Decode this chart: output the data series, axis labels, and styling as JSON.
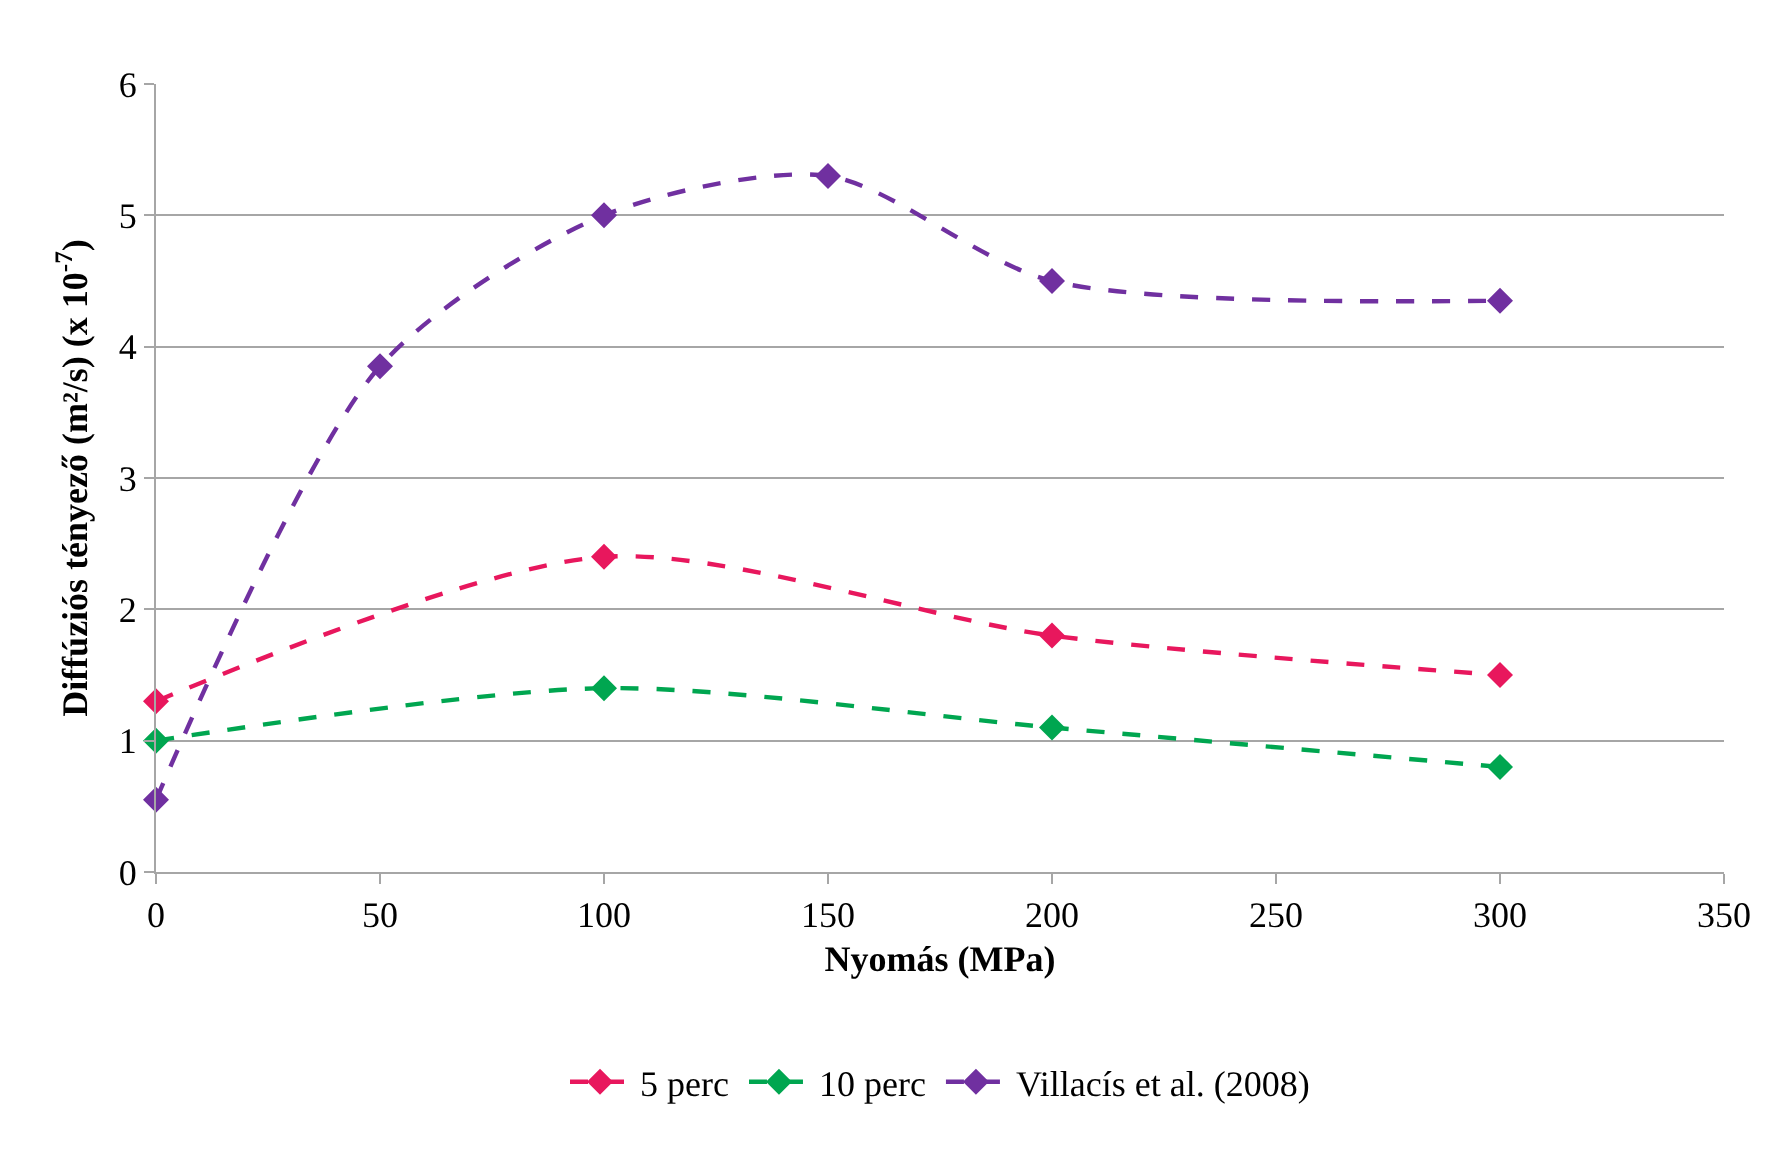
{
  "chart_data": {
    "type": "line",
    "xlabel": "Nyomás (MPa)",
    "ylabel": "Diffúziós tényező (m²/s) (x 10$^{-7}$)",
    "xlim": [
      0,
      350
    ],
    "xticks": [
      0,
      50,
      100,
      150,
      200,
      250,
      300,
      350
    ],
    "ylim": [
      0,
      6
    ],
    "yticks": [
      0,
      1,
      2,
      3,
      4,
      5,
      6
    ],
    "grid": "y",
    "legend": "bottom",
    "marker": "diamond",
    "line_style": "dashed",
    "series": [
      {
        "name": "5 perc",
        "color": "#e8175d",
        "x": [
          0,
          100,
          200,
          300
        ],
        "values": [
          1.3,
          2.4,
          1.8,
          1.5
        ]
      },
      {
        "name": "10 perc",
        "color": "#00a650",
        "x": [
          0,
          100,
          200,
          300
        ],
        "values": [
          1.0,
          1.4,
          1.1,
          0.8
        ]
      },
      {
        "name": "Villacís et al. (2008)",
        "color": "#7030a0",
        "x": [
          0,
          50,
          100,
          150,
          200,
          300
        ],
        "values": [
          0.55,
          3.85,
          5.0,
          5.3,
          4.5,
          4.35
        ]
      }
    ]
  }
}
